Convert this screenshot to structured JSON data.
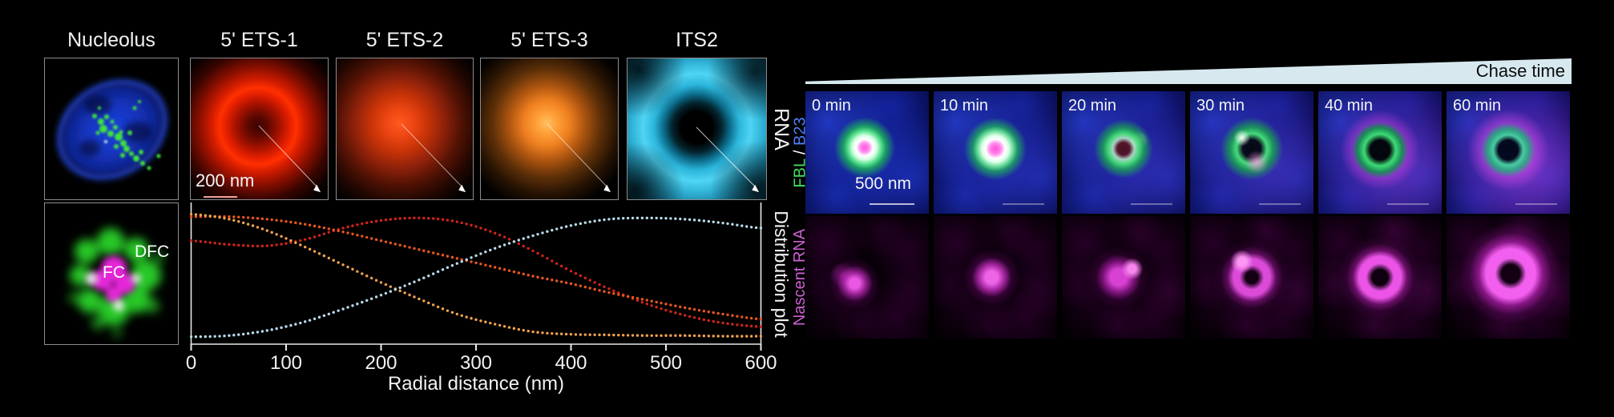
{
  "figure": {
    "background": "#000000"
  },
  "left_panel": {
    "column_titles": [
      "Nucleolus",
      "5' ETS-1",
      "5' ETS-2",
      "5' ETS-3",
      "ITS2"
    ],
    "rna_row_label": "RNA",
    "scale_bar_label": "200 nm",
    "inset_labels": {
      "dfc": "DFC",
      "fc": "FC"
    }
  },
  "chart_data": {
    "type": "scatter",
    "style": "dotted-profile-curves",
    "title": "",
    "xlabel": "Radial distance (nm)",
    "ylabel": "Distribution plot",
    "xlim": [
      0,
      600
    ],
    "ylim": [
      0,
      1.05
    ],
    "x_ticks": [
      0,
      100,
      200,
      300,
      400,
      500,
      600
    ],
    "grid": false,
    "legend": false,
    "series": [
      {
        "name": "5' ETS-1",
        "color": "#d22418",
        "points": [
          [
            0,
            0.78
          ],
          [
            40,
            0.75
          ],
          [
            80,
            0.74
          ],
          [
            120,
            0.79
          ],
          [
            160,
            0.88
          ],
          [
            200,
            0.94
          ],
          [
            240,
            0.96
          ],
          [
            280,
            0.93
          ],
          [
            320,
            0.84
          ],
          [
            360,
            0.7
          ],
          [
            400,
            0.54
          ],
          [
            440,
            0.4
          ],
          [
            480,
            0.28
          ],
          [
            520,
            0.19
          ],
          [
            560,
            0.13
          ],
          [
            600,
            0.1
          ]
        ]
      },
      {
        "name": "5' ETS-2",
        "color": "#e8561e",
        "points": [
          [
            0,
            0.97
          ],
          [
            40,
            0.97
          ],
          [
            80,
            0.95
          ],
          [
            120,
            0.91
          ],
          [
            160,
            0.85
          ],
          [
            200,
            0.78
          ],
          [
            240,
            0.71
          ],
          [
            280,
            0.64
          ],
          [
            320,
            0.57
          ],
          [
            360,
            0.5
          ],
          [
            400,
            0.44
          ],
          [
            440,
            0.37
          ],
          [
            480,
            0.31
          ],
          [
            520,
            0.25
          ],
          [
            560,
            0.2
          ],
          [
            600,
            0.16
          ]
        ]
      },
      {
        "name": "5' ETS-3",
        "color": "#f2a24e",
        "points": [
          [
            0,
            0.99
          ],
          [
            40,
            0.95
          ],
          [
            80,
            0.86
          ],
          [
            120,
            0.73
          ],
          [
            160,
            0.59
          ],
          [
            200,
            0.45
          ],
          [
            240,
            0.32
          ],
          [
            280,
            0.2
          ],
          [
            320,
            0.12
          ],
          [
            360,
            0.06
          ],
          [
            400,
            0.04
          ],
          [
            440,
            0.035
          ],
          [
            480,
            0.03
          ],
          [
            520,
            0.03
          ],
          [
            560,
            0.025
          ],
          [
            600,
            0.025
          ]
        ]
      },
      {
        "name": "ITS2",
        "color": "#b7d9e8",
        "points": [
          [
            0,
            0.02
          ],
          [
            40,
            0.03
          ],
          [
            80,
            0.07
          ],
          [
            120,
            0.14
          ],
          [
            160,
            0.24
          ],
          [
            200,
            0.35
          ],
          [
            240,
            0.47
          ],
          [
            280,
            0.6
          ],
          [
            320,
            0.72
          ],
          [
            360,
            0.82
          ],
          [
            400,
            0.9
          ],
          [
            440,
            0.95
          ],
          [
            480,
            0.96
          ],
          [
            520,
            0.95
          ],
          [
            560,
            0.92
          ],
          [
            600,
            0.88
          ]
        ]
      }
    ]
  },
  "right_panel": {
    "chase_time_label": "Chase time",
    "wedge_color": "#d7e9ef",
    "time_labels": [
      "0 min",
      "10 min",
      "20 min",
      "30 min",
      "40 min",
      "60 min"
    ],
    "scale_bar_label": "500 nm",
    "channel_label_top": {
      "parts": [
        {
          "text": "FBL",
          "color": "#3fe05c"
        },
        {
          "text": " / ",
          "color": "#ffffff"
        },
        {
          "text": "B23",
          "color": "#4f7cf8"
        }
      ]
    },
    "channel_label_bottom": {
      "text": "Nascent RNA",
      "color": "#cf5fd6"
    }
  }
}
